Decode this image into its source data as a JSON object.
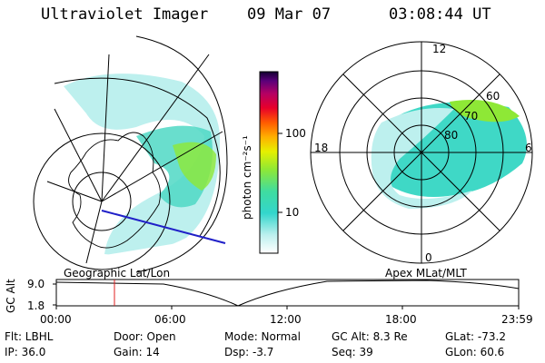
{
  "header": {
    "title": "Ultraviolet Imager",
    "date": "09 Mar 07",
    "time": "03:08:44 UT"
  },
  "colorbar": {
    "unit_label": "photon cm⁻²s⁻¹",
    "ticks": [
      "100",
      "10"
    ]
  },
  "polar_plot": {
    "labels": [
      "12",
      "18",
      "6",
      "0",
      "60",
      "70",
      "80"
    ]
  },
  "timeline": {
    "left_title": "Geographic Lat/Lon",
    "right_title": "Apex MLat/MLT",
    "y_axis_label": "GC Alt",
    "y_ticks": [
      "9.0",
      "1.8"
    ],
    "x_ticks": [
      "00:00",
      "06:00",
      "12:00",
      "18:00",
      "23:59"
    ]
  },
  "info": [
    [
      "Flt: LBHL",
      "Door: Open",
      "Mode: Normal",
      "GC Alt: 8.3 Re",
      "GLat: -73.2"
    ],
    [
      "IP: 36.0",
      "Gain: 14",
      "Dsp:   -3.7",
      "Seq: 39",
      "GLon:  60.6"
    ]
  ]
}
